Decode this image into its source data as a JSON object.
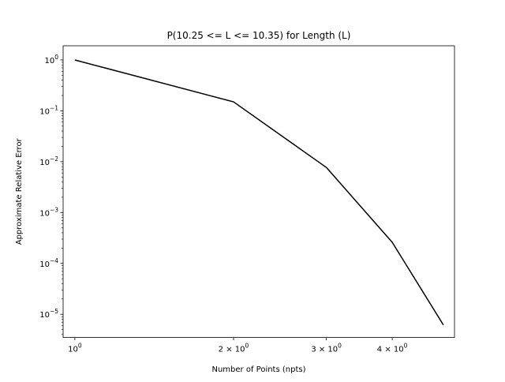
{
  "chart_data": {
    "type": "line",
    "title": "P(10.25 <= L <= 10.35) for Length (L)",
    "xlabel": "Number of Points (npts)",
    "ylabel": "Approximate Relative Error",
    "xscale": "log",
    "yscale": "log",
    "xlim": [
      0.95,
      5.25
    ],
    "ylim": [
      3.5e-06,
      1.9
    ],
    "x_ticks": [
      {
        "value": 1,
        "base": "10",
        "exp": "0"
      },
      {
        "value": 2,
        "base": "2 × 10",
        "exp": "0"
      },
      {
        "value": 3,
        "base": "3 × 10",
        "exp": "0"
      },
      {
        "value": 4,
        "base": "4 × 10",
        "exp": "0"
      }
    ],
    "y_ticks": [
      {
        "value": 1,
        "base": "10",
        "exp": "0"
      },
      {
        "value": 0.1,
        "base": "10",
        "exp": "−1"
      },
      {
        "value": 0.01,
        "base": "10",
        "exp": "−2"
      },
      {
        "value": 0.001,
        "base": "10",
        "exp": "−3"
      },
      {
        "value": 0.0001,
        "base": "10",
        "exp": "−4"
      },
      {
        "value": 1e-05,
        "base": "10",
        "exp": "−5"
      }
    ],
    "grid": false,
    "legend": "none",
    "series": [
      {
        "color": "#000000",
        "x": [
          1,
          2,
          3,
          4,
          5
        ],
        "y": [
          1.0,
          0.15,
          0.0077,
          0.00026,
          6.2e-06
        ]
      }
    ]
  }
}
